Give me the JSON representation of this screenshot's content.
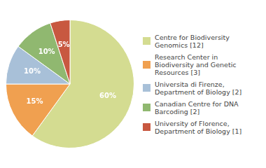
{
  "chart_data": {
    "type": "pie",
    "categories": [
      "Centre for Biodiversity\nGenomics [12]",
      "Research Center in\nBiodiversity and Genetic\nResources [3]",
      "Universita di Firenze,\nDepartment of Biology [2]",
      "Canadian Centre for DNA\nBarcoding [2]",
      "University of Florence,\nDepartment of Biology [1]"
    ],
    "values": [
      60,
      15,
      10,
      10,
      5
    ],
    "value_labels": [
      "60%",
      "15%",
      "10%",
      "10%",
      "5%"
    ],
    "colors": [
      "#d4dc91",
      "#f0a050",
      "#a8c0d8",
      "#90b870",
      "#c85840"
    ],
    "data_labels": true,
    "legend": "right"
  }
}
